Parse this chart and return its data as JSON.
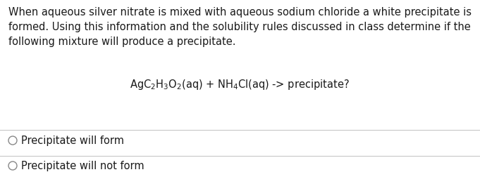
{
  "background_color": "#ffffff",
  "paragraph_text": "When aqueous silver nitrate is mixed with aqueous sodium chloride a white precipitate is\nformed. Using this information and the solubility rules discussed in class determine if the\nfollowing mixture will produce a precipitate.",
  "eq_text": "AgC$_2$H$_3$O$_2$(aq) + NH$_4$Cl(aq) -> precipitate?",
  "option1": "Precipitate will form",
  "option2": "Precipitate will not form",
  "para_fontsize": 10.5,
  "eq_fontsize": 10.5,
  "option_fontsize": 10.5,
  "text_color": "#1a1a1a",
  "line_color": "#c8c8c8",
  "circle_color": "#888888",
  "fig_width": 6.81,
  "fig_height": 2.72,
  "dpi": 100
}
